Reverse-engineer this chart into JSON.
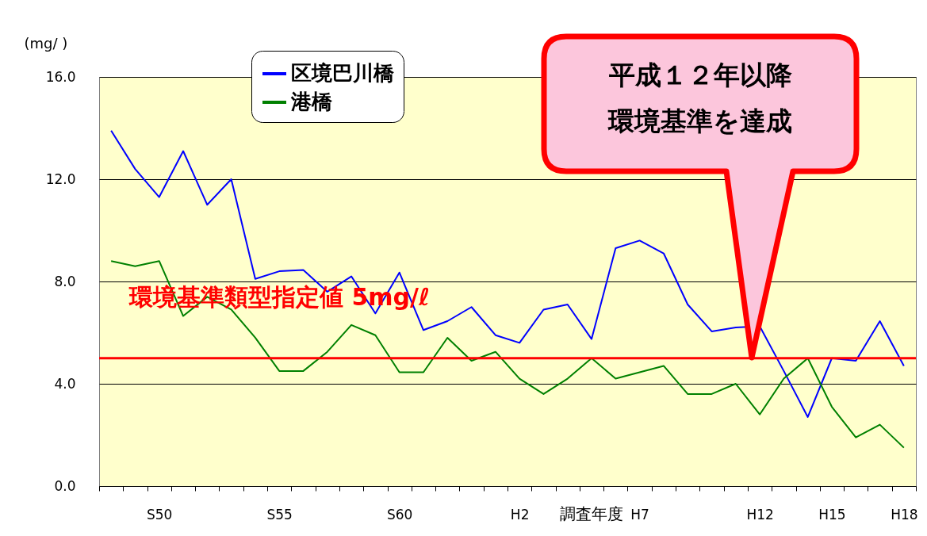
{
  "chart_data": {
    "type": "line",
    "xlabel": "調査年度",
    "ylabel": "(mg/ )",
    "categories": [
      null,
      null,
      "S50",
      null,
      null,
      null,
      null,
      "S55",
      null,
      null,
      null,
      null,
      "S60",
      null,
      null,
      null,
      null,
      "H2",
      null,
      null,
      null,
      null,
      "H7",
      null,
      null,
      null,
      null,
      "H12",
      null,
      null,
      "H15",
      null,
      null,
      "H18"
    ],
    "series": [
      {
        "name": "区境巴川橋",
        "color": "#0000ff",
        "values": [
          13.9,
          12.4,
          11.3,
          13.1,
          11.0,
          12.0,
          8.1,
          8.4,
          8.45,
          7.6,
          8.2,
          6.75,
          8.35,
          6.1,
          6.45,
          7.0,
          5.9,
          5.6,
          6.9,
          7.1,
          5.75,
          9.3,
          9.6,
          9.1,
          7.1,
          6.05,
          6.2,
          6.25,
          4.5,
          2.7,
          5.0,
          4.9,
          6.45,
          4.7
        ]
      },
      {
        "name": "港橋",
        "color": "#008000",
        "values": [
          8.8,
          8.6,
          8.8,
          6.65,
          7.4,
          6.9,
          5.8,
          4.5,
          4.5,
          5.25,
          6.3,
          5.9,
          4.45,
          4.45,
          5.8,
          4.9,
          5.25,
          4.2,
          3.6,
          4.2,
          5.0,
          4.2,
          4.45,
          4.7,
          3.6,
          3.6,
          4.0,
          2.8,
          4.2,
          5.0,
          3.1,
          1.9,
          2.4,
          1.5
        ]
      }
    ],
    "ylim": [
      0,
      16
    ],
    "yticks": [
      {
        "value": 0,
        "label": "0.0"
      },
      {
        "value": 4,
        "label": "4.0"
      },
      {
        "value": 8,
        "label": "8.0"
      },
      {
        "value": 12,
        "label": "12.0"
      },
      {
        "value": 16,
        "label": "16.0"
      }
    ],
    "grid": "y",
    "legend": "top left",
    "ref_lines": [
      {
        "axis": "y",
        "value": 5,
        "label": "環境基準類型指定値 5mg/ℓ",
        "color": "#ff0000"
      }
    ],
    "annotations": [
      "平成１２年以降環境基準を達成"
    ]
  }
}
